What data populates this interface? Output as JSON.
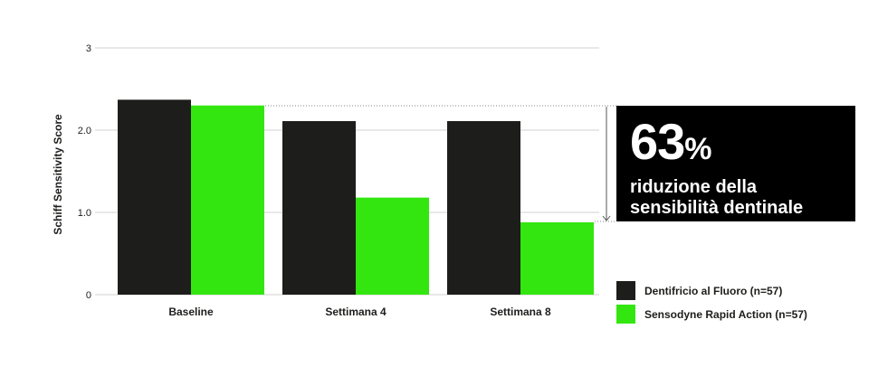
{
  "chart_data": {
    "type": "bar",
    "ylabel": "Schiff Sensitivity Score",
    "ylim": [
      0,
      3
    ],
    "yticks": [
      {
        "value": 0,
        "label": "0"
      },
      {
        "value": 1,
        "label": "1.0"
      },
      {
        "value": 2,
        "label": "2.0"
      },
      {
        "value": 3,
        "label": "3"
      }
    ],
    "categories": [
      "Baseline",
      "Settimana 4",
      "Settimana 8"
    ],
    "series": [
      {
        "name": "Dentifricio al Fluoro (n=57)",
        "color": "#1d1d1b",
        "values": [
          2.37,
          2.11,
          2.11
        ]
      },
      {
        "name": "Sensodyne Rapid Action (n=57)",
        "color": "#33e60f",
        "values": [
          2.3,
          1.18,
          0.88
        ]
      }
    ],
    "grid": true,
    "legend_position": "right"
  },
  "callout": {
    "number": "63",
    "unit": "%",
    "line1": "riduzione della",
    "line2": "sensibilità dentinale"
  }
}
